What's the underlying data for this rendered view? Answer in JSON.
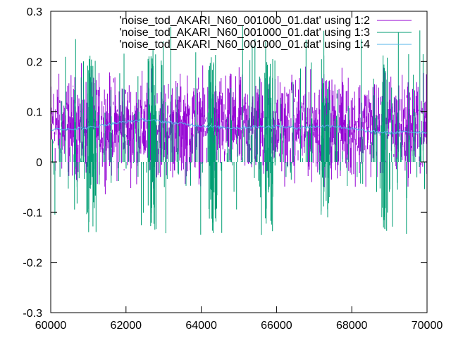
{
  "chart_data": {
    "type": "line",
    "title": "",
    "xlabel": "",
    "ylabel": "",
    "xlim": [
      60000,
      70000
    ],
    "ylim": [
      -0.3,
      0.3
    ],
    "x_ticks": [
      60000,
      62000,
      64000,
      66000,
      68000,
      70000
    ],
    "x_tick_labels": [
      "60000",
      "62000",
      "64000",
      "66000",
      "68000",
      "70000"
    ],
    "y_ticks": [
      0.3,
      0.2,
      0.1,
      0,
      -0.1,
      -0.2,
      -0.3
    ],
    "y_tick_labels": [
      "0.3",
      "0.2",
      "0.1",
      "0",
      "-0.1",
      "-0.2",
      "-0.3"
    ],
    "legend_position": "top-right",
    "series": [
      {
        "name": "'noise_tod_AKARI_N60_001000_01.dat' using 1:2",
        "color": "#9400d3",
        "style": "impulses",
        "baseline": 0.07,
        "amplitude": 0.07,
        "approx_range": [
          -0.15,
          0.26
        ],
        "x_start": 60000,
        "x_end": 70000
      },
      {
        "name": "'noise_tod_AKARI_N60_001000_01.dat' using 1:3",
        "color": "#009e73",
        "style": "impulses",
        "baseline": 0.0,
        "amplitude": 0.04,
        "approx_range": [
          -0.18,
          0.29
        ],
        "x_start": 60000,
        "x_end": 70000,
        "dense_bands_x": [
          61100,
          62700,
          64300,
          65800,
          67300,
          68900
        ]
      },
      {
        "name": "'noise_tod_AKARI_N60_001000_01.dat' using 1:4",
        "color": "#56b4e9",
        "style": "lines",
        "x": [
          60000,
          60500,
          61000,
          61500,
          62000,
          62500,
          63000,
          63500,
          64000,
          64500,
          65000,
          65500,
          66000,
          66500,
          67000,
          67500,
          68000,
          68500,
          69000,
          69500,
          70000
        ],
        "y": [
          0.064,
          0.066,
          0.068,
          0.075,
          0.08,
          0.084,
          0.08,
          0.076,
          0.072,
          0.069,
          0.068,
          0.07,
          0.071,
          0.068,
          0.07,
          0.072,
          0.066,
          0.06,
          0.058,
          0.06,
          0.059
        ]
      }
    ]
  }
}
